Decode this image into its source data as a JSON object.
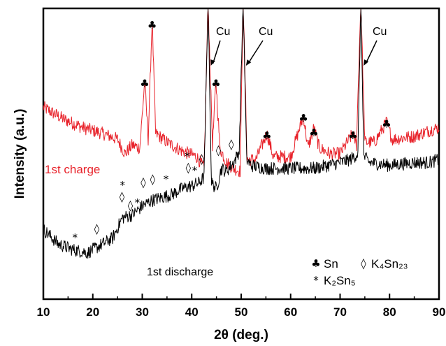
{
  "chart_data": {
    "type": "line",
    "xlabel": "2θ (deg.)",
    "ylabel": "Intensity (a.u.)",
    "xlim": [
      10,
      90
    ],
    "xticks": [
      10,
      20,
      30,
      40,
      50,
      60,
      70,
      80,
      90
    ],
    "y_ticks_shown": false,
    "grid": false,
    "legend_position": "bottom-right",
    "series": [
      {
        "name": "1st charge",
        "color": "#e8232b",
        "points": [
          [
            10,
            0.66
          ],
          [
            14,
            0.62
          ],
          [
            18,
            0.59
          ],
          [
            22,
            0.57
          ],
          [
            25,
            0.55
          ],
          [
            26.5,
            0.5
          ],
          [
            28,
            0.53
          ],
          [
            29.5,
            0.52
          ],
          [
            30.5,
            0.75
          ],
          [
            31.2,
            0.55
          ],
          [
            32,
            0.96
          ],
          [
            32.7,
            0.57
          ],
          [
            35,
            0.54
          ],
          [
            38,
            0.51
          ],
          [
            41,
            0.49
          ],
          [
            42.5,
            0.45
          ],
          [
            43.3,
            1.03
          ],
          [
            44.2,
            0.53
          ],
          [
            44.9,
            0.75
          ],
          [
            45.7,
            0.52
          ],
          [
            47,
            0.47
          ],
          [
            48.5,
            0.45
          ],
          [
            49.8,
            0.44
          ],
          [
            50.4,
            1.03
          ],
          [
            51.2,
            0.48
          ],
          [
            53,
            0.48
          ],
          [
            55.2,
            0.57
          ],
          [
            56.5,
            0.49
          ],
          [
            60,
            0.49
          ],
          [
            62.6,
            0.63
          ],
          [
            63.5,
            0.52
          ],
          [
            64.7,
            0.59
          ],
          [
            65.8,
            0.52
          ],
          [
            68,
            0.5
          ],
          [
            70,
            0.5
          ],
          [
            72.6,
            0.57
          ],
          [
            73.3,
            0.53
          ],
          [
            74.2,
            1.03
          ],
          [
            75,
            0.54
          ],
          [
            77,
            0.54
          ],
          [
            79.4,
            0.61
          ],
          [
            80.5,
            0.55
          ],
          [
            85,
            0.56
          ],
          [
            88,
            0.58
          ],
          [
            90,
            0.59
          ]
        ]
      },
      {
        "name": "1st discharge",
        "color": "#000000",
        "points": [
          [
            10,
            0.24
          ],
          [
            13,
            0.19
          ],
          [
            16,
            0.17
          ],
          [
            19,
            0.16
          ],
          [
            21,
            0.18
          ],
          [
            24,
            0.21
          ],
          [
            26,
            0.28
          ],
          [
            28,
            0.29
          ],
          [
            30,
            0.32
          ],
          [
            32,
            0.34
          ],
          [
            34,
            0.35
          ],
          [
            36,
            0.36
          ],
          [
            38,
            0.38
          ],
          [
            40,
            0.39
          ],
          [
            41.5,
            0.4
          ],
          [
            42.5,
            0.42
          ],
          [
            43.3,
            1.03
          ],
          [
            44,
            0.4
          ],
          [
            45,
            0.38
          ],
          [
            46,
            0.45
          ],
          [
            47,
            0.44
          ],
          [
            48.5,
            0.47
          ],
          [
            49.6,
            0.51
          ],
          [
            50.4,
            1.03
          ],
          [
            51.1,
            0.48
          ],
          [
            52,
            0.46
          ],
          [
            55,
            0.45
          ],
          [
            60,
            0.45
          ],
          [
            65,
            0.45
          ],
          [
            70,
            0.47
          ],
          [
            72,
            0.48
          ],
          [
            73.6,
            0.5
          ],
          [
            74.2,
            1.03
          ],
          [
            74.8,
            0.49
          ],
          [
            76,
            0.47
          ],
          [
            80,
            0.46
          ],
          [
            85,
            0.47
          ],
          [
            88,
            0.47
          ],
          [
            90,
            0.48
          ]
        ]
      }
    ],
    "labels": {
      "charge_label": "1st charge",
      "discharge_label": "1st discharge",
      "cu": "Cu"
    },
    "cu_peaks": [
      43.3,
      50.4,
      74.2
    ],
    "sn_markers": [
      [
        30.5,
        0.73
      ],
      [
        32,
        0.93
      ],
      [
        44.9,
        0.73
      ],
      [
        55.2,
        0.55
      ],
      [
        62.6,
        0.61
      ],
      [
        64.7,
        0.56
      ],
      [
        72.6,
        0.55
      ],
      [
        79.4,
        0.59
      ]
    ],
    "k4sn23_markers": [
      [
        20.8,
        0.23
      ],
      [
        25.9,
        0.34
      ],
      [
        27.6,
        0.31
      ],
      [
        30.2,
        0.39
      ],
      [
        32.1,
        0.4
      ],
      [
        39.3,
        0.44
      ],
      [
        42.0,
        0.47
      ],
      [
        45.4,
        0.5
      ],
      [
        48.0,
        0.52
      ]
    ],
    "k2sn5_markers": [
      [
        16.4,
        0.2
      ],
      [
        26.0,
        0.38
      ],
      [
        29.0,
        0.32
      ],
      [
        34.8,
        0.4
      ],
      [
        39.1,
        0.48
      ],
      [
        40.6,
        0.43
      ]
    ],
    "legend": [
      {
        "symbol": "♣",
        "label": "Sn"
      },
      {
        "symbol": "◊",
        "label": "K₄Sn₂₃"
      },
      {
        "symbol": "*",
        "label": "K₂Sn₅"
      }
    ]
  }
}
